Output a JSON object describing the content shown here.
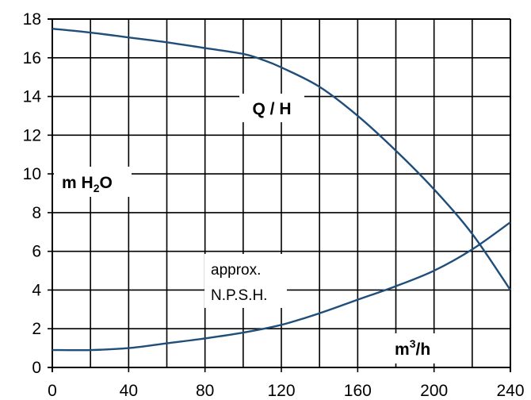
{
  "chart_data": {
    "type": "line",
    "xlim": [
      0,
      240
    ],
    "ylim": [
      0,
      18
    ],
    "x_ticks": [
      0,
      40,
      80,
      120,
      160,
      200,
      240
    ],
    "y_ticks": [
      0,
      2,
      4,
      6,
      8,
      10,
      12,
      14,
      16,
      18
    ],
    "grid": true,
    "series": [
      {
        "name": "Q / H",
        "x": [
          0,
          20,
          40,
          60,
          80,
          100,
          110,
          120,
          140,
          160,
          180,
          200,
          220,
          240
        ],
        "y": [
          17.5,
          17.3,
          17.05,
          16.8,
          16.5,
          16.2,
          15.9,
          15.5,
          14.5,
          13.0,
          11.2,
          9.2,
          6.9,
          4.0
        ]
      },
      {
        "name": "approx. N.P.S.H.",
        "x": [
          0,
          20,
          40,
          60,
          80,
          100,
          120,
          140,
          160,
          180,
          200,
          220,
          240
        ],
        "y": [
          0.9,
          0.9,
          1.0,
          1.25,
          1.5,
          1.8,
          2.2,
          2.8,
          3.5,
          4.2,
          5.0,
          6.1,
          7.5
        ]
      }
    ],
    "annotations": {
      "qh": "Q / H",
      "ylabel_main": "m H",
      "ylabel_sub": "2",
      "ylabel_tail": "O",
      "npsh_line1": "approx.",
      "npsh_line2": "N.P.S.H.",
      "xlabel_main": "m",
      "xlabel_sup": "3",
      "xlabel_tail": "/h"
    },
    "colors": {
      "curve": "#1f4e7a",
      "grid": "#000000"
    }
  }
}
